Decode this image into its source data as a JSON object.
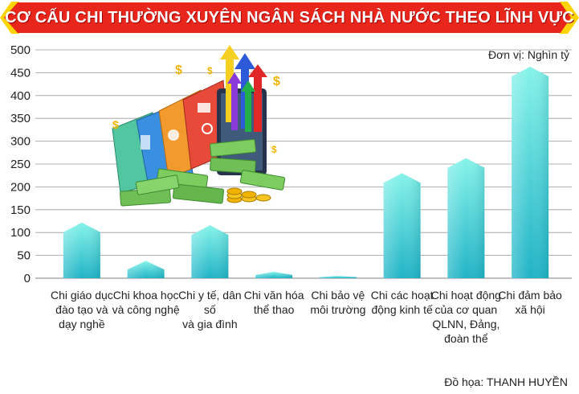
{
  "header": {
    "title": "CƠ CẤU CHI THƯỜNG XUYÊN NGÂN SÁCH NHÀ NƯỚC THEO LĨNH VỰC"
  },
  "unit_label": "Đơn vị: Nghìn tỷ",
  "credit": "Đồ họa: THANH HUYỀN",
  "colors": {
    "banner": "#e8261c",
    "banner_accent": "#ffd400",
    "bar_top": "#7ff0e6",
    "bar_bottom": "#1fb6c8",
    "grid": "#9a9a9a"
  },
  "chart_data": {
    "type": "bar",
    "categories": [
      "Chi giáo dục đào tạo và dạy nghề",
      "Chi khoa học và công nghệ",
      "Chi y tế, dân số và gia đình",
      "Chi văn hóa thể thao",
      "Chi bảo vệ môi trường",
      "Chi các hoạt động kinh tế",
      "Chi hoạt động của cơ quan QLNN, Đảng, đoàn thể",
      "Chi đảm bảo xã hội"
    ],
    "category_lines": [
      [
        "Chi giáo dục",
        "đào tạo và",
        "dạy nghề"
      ],
      [
        "Chi khoa học",
        "và công nghệ"
      ],
      [
        "Chi y tế, dân số",
        "và gia đình"
      ],
      [
        "Chi văn hóa",
        "thể thao"
      ],
      [
        "Chi bảo vệ",
        "môi trường"
      ],
      [
        "Chi các hoạt",
        "động kinh tế"
      ],
      [
        "Chi hoạt động",
        "của cơ quan",
        "QLNN, Đảng,",
        "đoàn thể"
      ],
      [
        "Chi đảm bảo",
        "xã hội"
      ]
    ],
    "values": [
      122,
      38,
      116,
      14,
      5,
      230,
      263,
      463
    ],
    "yticks": [
      "0",
      "50",
      "100",
      "150",
      "200",
      "250",
      "300",
      "350",
      "400",
      "450",
      "500"
    ],
    "ylim": [
      0,
      500
    ],
    "grid": true
  }
}
